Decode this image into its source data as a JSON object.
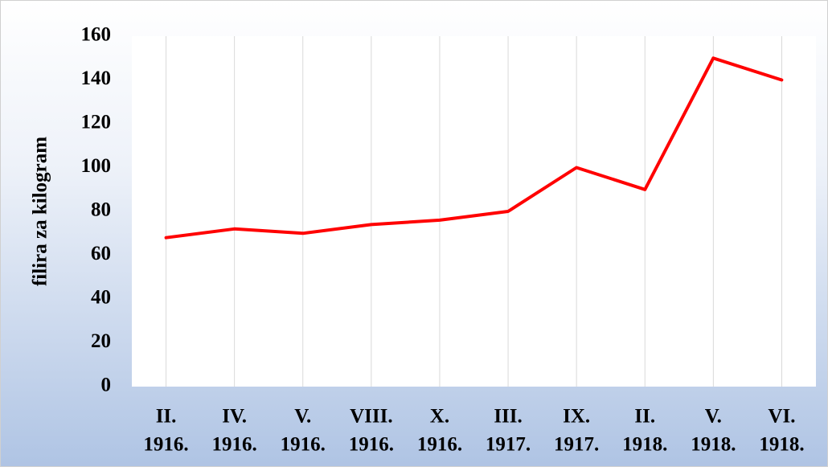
{
  "chart_data": {
    "type": "line",
    "y_label": "filira za kilogram",
    "categories": [
      [
        "II.",
        "1916."
      ],
      [
        "IV.",
        "1916."
      ],
      [
        "V.",
        "1916."
      ],
      [
        "VIII.",
        "1916."
      ],
      [
        "X.",
        "1916."
      ],
      [
        "III.",
        "1917."
      ],
      [
        "IX.",
        "1917."
      ],
      [
        "II.",
        "1918."
      ],
      [
        "V.",
        "1918."
      ],
      [
        "VI.",
        "1918."
      ]
    ],
    "values": [
      68,
      72,
      70,
      74,
      76,
      80,
      100,
      90,
      150,
      140
    ],
    "color": "#ff0000",
    "ylim": [
      0,
      160
    ],
    "yticks": [
      0,
      20,
      40,
      60,
      80,
      100,
      120,
      140,
      160
    ],
    "grid": "x"
  }
}
